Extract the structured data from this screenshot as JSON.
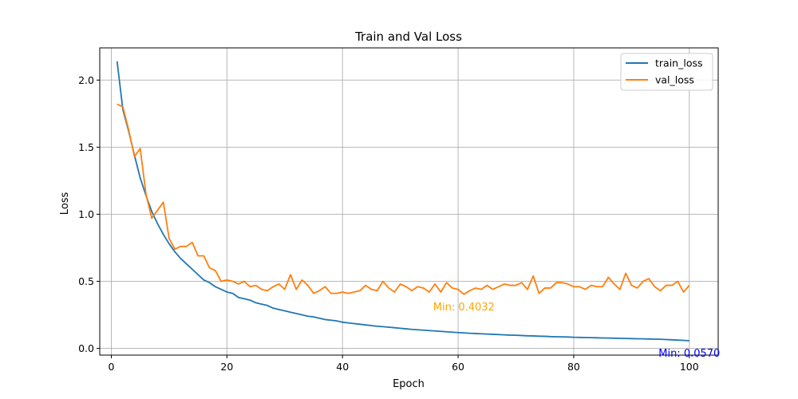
{
  "chart_data": {
    "type": "line",
    "title": "Train and Val Loss",
    "xlabel": "Epoch",
    "ylabel": "Loss",
    "xlim": [
      -2,
      105
    ],
    "ylim": [
      -0.05,
      2.24
    ],
    "xticks": [
      0,
      20,
      40,
      60,
      80,
      100
    ],
    "yticks": [
      0.0,
      0.5,
      1.0,
      1.5,
      2.0
    ],
    "xtick_labels": [
      "0",
      "20",
      "40",
      "60",
      "80",
      "100"
    ],
    "ytick_labels": [
      "0.0",
      "0.5",
      "1.0",
      "1.5",
      "2.0"
    ],
    "grid": true,
    "legend_position": "top-right",
    "x": [
      1,
      2,
      3,
      4,
      5,
      6,
      7,
      8,
      9,
      10,
      11,
      12,
      13,
      14,
      15,
      16,
      17,
      18,
      19,
      20,
      21,
      22,
      23,
      24,
      25,
      26,
      27,
      28,
      29,
      30,
      31,
      32,
      33,
      34,
      35,
      36,
      37,
      38,
      39,
      40,
      41,
      42,
      43,
      44,
      45,
      46,
      47,
      48,
      49,
      50,
      51,
      52,
      53,
      54,
      55,
      56,
      57,
      58,
      59,
      60,
      61,
      62,
      63,
      64,
      65,
      66,
      67,
      68,
      69,
      70,
      71,
      72,
      73,
      74,
      75,
      76,
      77,
      78,
      79,
      80,
      81,
      82,
      83,
      84,
      85,
      86,
      87,
      88,
      89,
      90,
      91,
      92,
      93,
      94,
      95,
      96,
      97,
      98,
      99,
      100
    ],
    "series": [
      {
        "name": "train_loss",
        "color": "#1f77b4",
        "values": [
          2.14,
          1.78,
          1.62,
          1.44,
          1.27,
          1.14,
          1.02,
          0.93,
          0.85,
          0.78,
          0.72,
          0.67,
          0.63,
          0.59,
          0.55,
          0.51,
          0.49,
          0.46,
          0.44,
          0.42,
          0.41,
          0.38,
          0.37,
          0.36,
          0.34,
          0.33,
          0.32,
          0.3,
          0.29,
          0.28,
          0.27,
          0.26,
          0.25,
          0.24,
          0.235,
          0.225,
          0.215,
          0.21,
          0.205,
          0.195,
          0.19,
          0.185,
          0.18,
          0.175,
          0.17,
          0.165,
          0.162,
          0.158,
          0.154,
          0.15,
          0.146,
          0.142,
          0.139,
          0.136,
          0.133,
          0.13,
          0.127,
          0.124,
          0.121,
          0.118,
          0.116,
          0.113,
          0.111,
          0.109,
          0.107,
          0.105,
          0.103,
          0.101,
          0.099,
          0.098,
          0.096,
          0.094,
          0.093,
          0.091,
          0.09,
          0.088,
          0.087,
          0.086,
          0.085,
          0.083,
          0.082,
          0.081,
          0.08,
          0.079,
          0.078,
          0.077,
          0.076,
          0.075,
          0.074,
          0.073,
          0.072,
          0.071,
          0.07,
          0.069,
          0.068,
          0.066,
          0.064,
          0.062,
          0.06,
          0.057
        ]
      },
      {
        "name": "val_loss",
        "color": "#ff7f0e",
        "values": [
          1.82,
          1.8,
          1.63,
          1.43,
          1.49,
          1.15,
          0.97,
          1.03,
          1.09,
          0.82,
          0.74,
          0.76,
          0.76,
          0.79,
          0.69,
          0.69,
          0.6,
          0.58,
          0.5,
          0.51,
          0.5,
          0.48,
          0.5,
          0.46,
          0.47,
          0.44,
          0.43,
          0.46,
          0.48,
          0.44,
          0.55,
          0.44,
          0.51,
          0.47,
          0.41,
          0.43,
          0.46,
          0.41,
          0.41,
          0.42,
          0.41,
          0.42,
          0.43,
          0.47,
          0.44,
          0.43,
          0.5,
          0.45,
          0.42,
          0.48,
          0.46,
          0.43,
          0.46,
          0.45,
          0.42,
          0.48,
          0.42,
          0.49,
          0.45,
          0.44,
          0.4032,
          0.43,
          0.45,
          0.44,
          0.47,
          0.44,
          0.46,
          0.48,
          0.47,
          0.47,
          0.49,
          0.44,
          0.54,
          0.41,
          0.45,
          0.45,
          0.49,
          0.49,
          0.48,
          0.46,
          0.46,
          0.44,
          0.47,
          0.46,
          0.46,
          0.53,
          0.48,
          0.44,
          0.56,
          0.47,
          0.45,
          0.5,
          0.52,
          0.46,
          0.43,
          0.47,
          0.47,
          0.5,
          0.42,
          0.47
        ]
      }
    ],
    "annotations": [
      {
        "text": "Min: 0.4032",
        "x": 61,
        "y": 0.4032,
        "color": "#ffa500"
      },
      {
        "text": "Min: 0.0570",
        "x": 100,
        "y": 0.057,
        "color": "#0000ff"
      }
    ]
  }
}
